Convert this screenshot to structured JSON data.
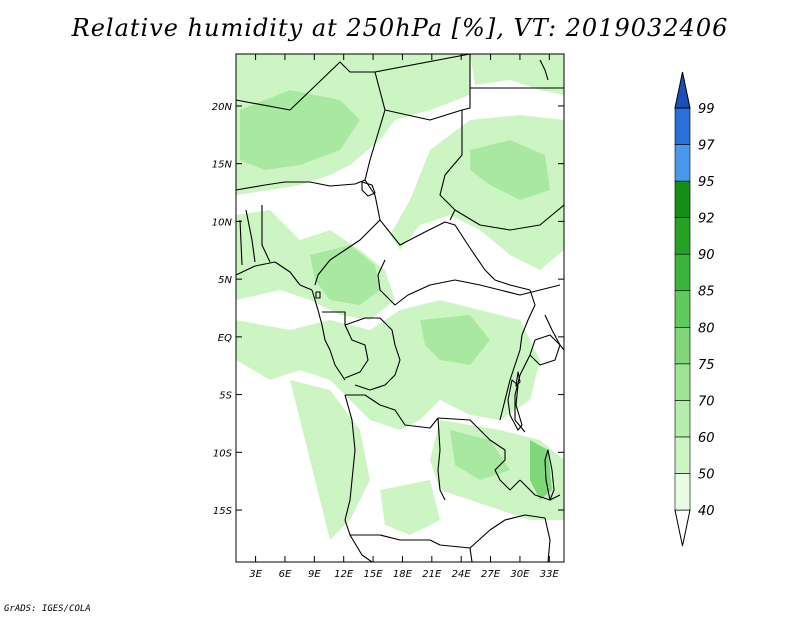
{
  "title": "Relative humidity at 250hPa [%], VT: 2019032406",
  "credit": "GrADS: IGES/COLA",
  "map": {
    "projection": "latlon",
    "lon_range": [
      1,
      34.5
    ],
    "lat_range": [
      -19.5,
      24.5
    ],
    "x_ticks": [
      "3E",
      "6E",
      "9E",
      "12E",
      "15E",
      "18E",
      "21E",
      "24E",
      "27E",
      "30E",
      "33E"
    ],
    "y_ticks": [
      "20N",
      "15N",
      "10N",
      "5N",
      "EQ",
      "5S",
      "10S",
      "15S"
    ],
    "field_colors": {
      "light": "#cdf5c3",
      "mid": "#a9e8a0",
      "strong": "#7fd77a"
    },
    "background": "#ffffff"
  },
  "colorbar": {
    "labels": [
      "40",
      "50",
      "60",
      "70",
      "75",
      "80",
      "85",
      "90",
      "92",
      "95",
      "97",
      "99"
    ],
    "colors": [
      "#ffffff",
      "#e8fbe3",
      "#cdf5c3",
      "#b4eeab",
      "#9de494",
      "#7fd77a",
      "#5ecb5b",
      "#3bb43b",
      "#25a225",
      "#148e14",
      "#4a98ec",
      "#2a70da",
      "#1a4fb8"
    ]
  }
}
